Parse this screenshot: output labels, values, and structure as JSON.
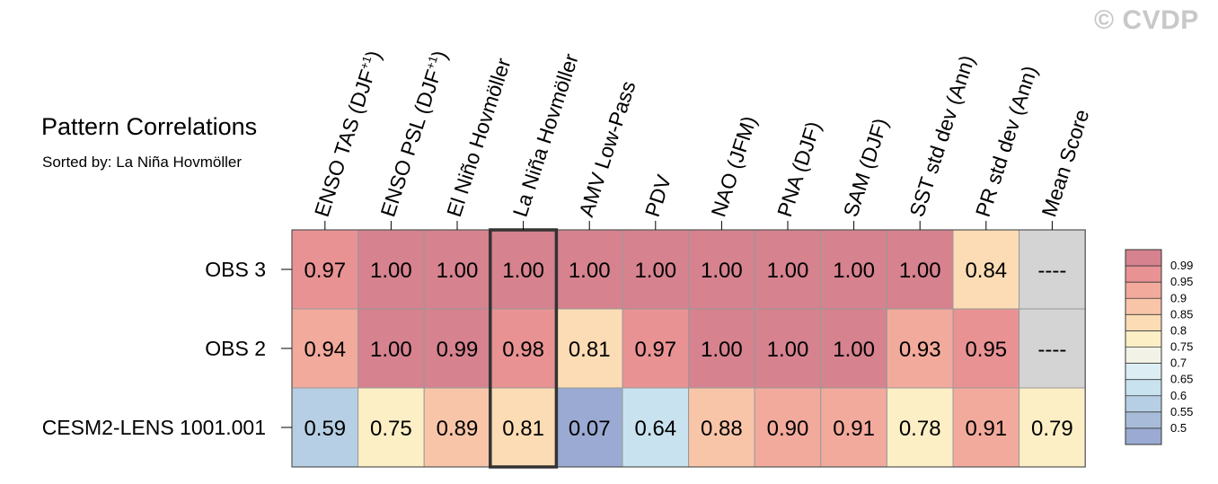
{
  "watermark": "© CVDP",
  "title": "Pattern Correlations",
  "subtitle": "Sorted by: La Niña Hovmöller",
  "chart_data": {
    "type": "heatmap",
    "columns": [
      {
        "pre": "ENSO TAS (DJF",
        "sup": "+1",
        "post": ")"
      },
      {
        "pre": "ENSO PSL (DJF",
        "sup": "+1",
        "post": ")"
      },
      {
        "pre": "El Niño Hovmöller",
        "sup": "",
        "post": ""
      },
      {
        "pre": "La Niña Hovmöller",
        "sup": "",
        "post": ""
      },
      {
        "pre": "AMV Low-Pass",
        "sup": "",
        "post": ""
      },
      {
        "pre": "PDV",
        "sup": "",
        "post": ""
      },
      {
        "pre": "NAO (JFM)",
        "sup": "",
        "post": ""
      },
      {
        "pre": "PNA (DJF)",
        "sup": "",
        "post": ""
      },
      {
        "pre": "SAM (DJF)",
        "sup": "",
        "post": ""
      },
      {
        "pre": "SST std dev (Ann)",
        "sup": "",
        "post": ""
      },
      {
        "pre": "PR std dev (Ann)",
        "sup": "",
        "post": ""
      },
      {
        "pre": "Mean Score",
        "sup": "",
        "post": ""
      }
    ],
    "rows": [
      "OBS 3",
      "OBS 2",
      "CESM2-LENS 1001.001"
    ],
    "cells": [
      [
        "0.97",
        "1.00",
        "1.00",
        "1.00",
        "1.00",
        "1.00",
        "1.00",
        "1.00",
        "1.00",
        "1.00",
        "0.84",
        "----"
      ],
      [
        "0.94",
        "1.00",
        "0.99",
        "0.98",
        "0.81",
        "0.97",
        "1.00",
        "1.00",
        "1.00",
        "0.93",
        "0.95",
        "----"
      ],
      [
        "0.59",
        "0.75",
        "0.89",
        "0.81",
        "0.07",
        "0.64",
        "0.88",
        "0.90",
        "0.91",
        "0.78",
        "0.91",
        "0.79"
      ]
    ],
    "highlight_column": 3,
    "missing_color": "#d4d4d4",
    "colorbar": {
      "levels": [
        "0.99",
        "0.95",
        "0.9",
        "0.85",
        "0.8",
        "0.75",
        "0.7",
        "0.65",
        "0.6",
        "0.55",
        "0.5"
      ],
      "colors": [
        "#d6828f",
        "#e89294",
        "#f2aa9c",
        "#f8c5a8",
        "#fbdcb4",
        "#fdefc5",
        "#f3f2e6",
        "#dceef4",
        "#c8e3ef",
        "#b6cfe4",
        "#a8bcda",
        "#9aaad2"
      ]
    }
  }
}
